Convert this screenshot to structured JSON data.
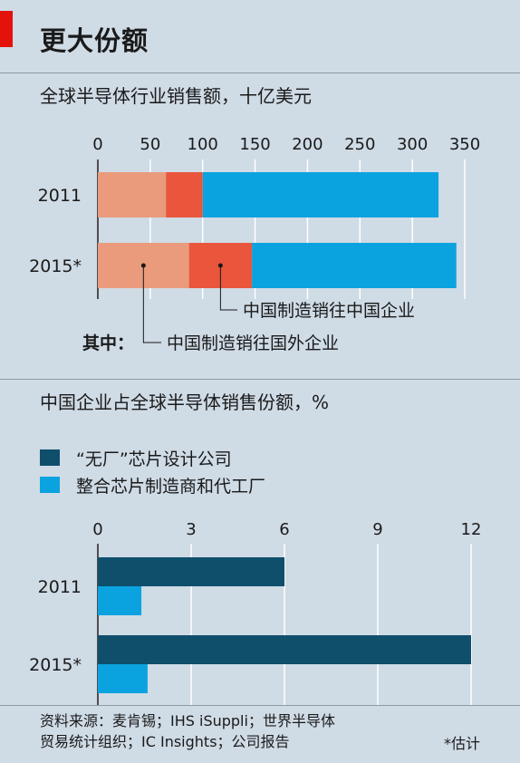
{
  "header": {
    "title": "更大份额"
  },
  "colors": {
    "background": "#cfdbe5",
    "accent_red": "#e3120b",
    "china_to_abroad": "#e99b7c",
    "china_to_china": "#e9563c",
    "rest": "#0ba3df",
    "fabless": "#0f4f6c",
    "idm": "#0ba3df"
  },
  "chart_data": [
    {
      "type": "bar",
      "orientation": "horizontal",
      "stacked": true,
      "title": "全球半导体行业销售额，十亿美元",
      "categories": [
        "2011",
        "2015*"
      ],
      "xlim": [
        0,
        350
      ],
      "xticks": [
        "0",
        "50",
        "100",
        "150",
        "200",
        "250",
        "300",
        "350"
      ],
      "grid": true,
      "series": [
        {
          "name": "中国制造销往国外企业",
          "values": [
            65,
            87
          ]
        },
        {
          "name": "中国制造销往中国企业",
          "values": [
            35,
            60
          ]
        },
        {
          "name": "",
          "values": [
            225,
            195
          ]
        }
      ],
      "annotation_prefix": "其中："
    },
    {
      "type": "bar",
      "orientation": "horizontal",
      "title": "中国企业占全球半导体销售份额，%",
      "categories": [
        "2011",
        "2015*"
      ],
      "xlim": [
        0,
        12
      ],
      "xticks": [
        "0",
        "3",
        "6",
        "9",
        "12"
      ],
      "grid": true,
      "legend": "top-left",
      "series": [
        {
          "name": "“无厂”芯片设计公司",
          "values": [
            6.0,
            12.0
          ]
        },
        {
          "name": "整合芯片制造商和代工厂",
          "values": [
            1.4,
            1.6
          ]
        }
      ]
    }
  ],
  "footer": {
    "source_line1": "资料来源：麦肯锡；IHS iSuppli；世界半导体",
    "source_line2": "贸易统计组织；IC Insights；公司报告",
    "footnote": "*估计"
  }
}
